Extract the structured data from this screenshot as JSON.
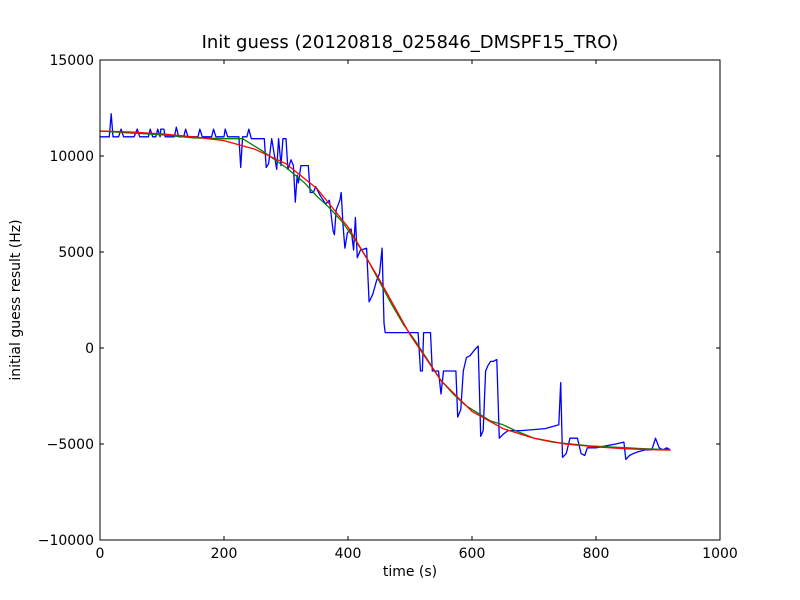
{
  "chart_data": {
    "type": "line",
    "title": "Init guess (20120818_025846_DMSPF15_TRO)",
    "xlabel": "time (s)",
    "ylabel": "initial guess result (Hz)",
    "xlim": [
      0,
      1000
    ],
    "ylim": [
      -10000,
      15000
    ],
    "xticks": [
      0,
      200,
      400,
      600,
      800,
      1000
    ],
    "yticks": [
      -10000,
      -5000,
      0,
      5000,
      10000,
      15000
    ],
    "grid": false,
    "series": [
      {
        "color": "#0000ff",
        "points": [
          [
            0,
            11000
          ],
          [
            15,
            11000
          ],
          [
            18,
            12200
          ],
          [
            21,
            11000
          ],
          [
            30,
            11000
          ],
          [
            34,
            11400
          ],
          [
            38,
            11000
          ],
          [
            55,
            11000
          ],
          [
            60,
            11400
          ],
          [
            64,
            11000
          ],
          [
            78,
            11000
          ],
          [
            81,
            11400
          ],
          [
            85,
            11000
          ],
          [
            90,
            11000
          ],
          [
            93,
            11400
          ],
          [
            97,
            11000
          ],
          [
            98,
            11400
          ],
          [
            103,
            11400
          ],
          [
            105,
            11000
          ],
          [
            120,
            11000
          ],
          [
            123,
            11500
          ],
          [
            127,
            11000
          ],
          [
            135,
            11000
          ],
          [
            138,
            11400
          ],
          [
            142,
            11000
          ],
          [
            158,
            11000
          ],
          [
            161,
            11400
          ],
          [
            165,
            11000
          ],
          [
            180,
            11000
          ],
          [
            183,
            11400
          ],
          [
            187,
            11000
          ],
          [
            200,
            11000
          ],
          [
            202,
            11400
          ],
          [
            206,
            11000
          ],
          [
            224,
            11000
          ],
          [
            227,
            9400
          ],
          [
            230,
            11000
          ],
          [
            237,
            11000
          ],
          [
            240,
            11400
          ],
          [
            244,
            10900
          ],
          [
            265,
            10900
          ],
          [
            268,
            9400
          ],
          [
            272,
            9600
          ],
          [
            277,
            10900
          ],
          [
            285,
            9300
          ],
          [
            288,
            10900
          ],
          [
            292,
            9500
          ],
          [
            295,
            10900
          ],
          [
            300,
            10900
          ],
          [
            303,
            9300
          ],
          [
            308,
            9800
          ],
          [
            312,
            9500
          ],
          [
            315,
            7600
          ],
          [
            318,
            9000
          ],
          [
            320,
            8600
          ],
          [
            324,
            9500
          ],
          [
            336,
            9500
          ],
          [
            339,
            8100
          ],
          [
            344,
            8100
          ],
          [
            348,
            8400
          ],
          [
            354,
            8000
          ],
          [
            358,
            7800
          ],
          [
            364,
            7500
          ],
          [
            370,
            7700
          ],
          [
            376,
            6100
          ],
          [
            378,
            5900
          ],
          [
            381,
            7200
          ],
          [
            387,
            7700
          ],
          [
            389,
            8100
          ],
          [
            392,
            6400
          ],
          [
            395,
            5200
          ],
          [
            399,
            6000
          ],
          [
            405,
            6200
          ],
          [
            409,
            5100
          ],
          [
            412,
            6800
          ],
          [
            415,
            4700
          ],
          [
            420,
            5100
          ],
          [
            430,
            5200
          ],
          [
            434,
            2400
          ],
          [
            440,
            2800
          ],
          [
            446,
            3500
          ],
          [
            451,
            3900
          ],
          [
            455,
            5200
          ],
          [
            458,
            1300
          ],
          [
            460,
            800
          ],
          [
            480,
            800
          ],
          [
            498,
            800
          ],
          [
            513,
            800
          ],
          [
            517,
            -1200
          ],
          [
            520,
            -1200
          ],
          [
            522,
            800
          ],
          [
            533,
            800
          ],
          [
            536,
            -1200
          ],
          [
            542,
            -1200
          ],
          [
            546,
            -1200
          ],
          [
            550,
            -2400
          ],
          [
            554,
            -1200
          ],
          [
            574,
            -1200
          ],
          [
            577,
            -3600
          ],
          [
            582,
            -3200
          ],
          [
            586,
            -1200
          ],
          [
            591,
            -500
          ],
          [
            597,
            -400
          ],
          [
            604,
            -100
          ],
          [
            610,
            100
          ],
          [
            614,
            -4600
          ],
          [
            618,
            -4300
          ],
          [
            622,
            -1200
          ],
          [
            626,
            -900
          ],
          [
            630,
            -700
          ],
          [
            634,
            -700
          ],
          [
            640,
            -600
          ],
          [
            644,
            -4700
          ],
          [
            650,
            -4500
          ],
          [
            658,
            -4300
          ],
          [
            680,
            -4300
          ],
          [
            718,
            -4200
          ],
          [
            740,
            -4000
          ],
          [
            743,
            -1800
          ],
          [
            746,
            -5700
          ],
          [
            752,
            -5500
          ],
          [
            758,
            -4700
          ],
          [
            770,
            -4700
          ],
          [
            776,
            -5500
          ],
          [
            782,
            -5600
          ],
          [
            786,
            -5200
          ],
          [
            800,
            -5200
          ],
          [
            832,
            -5000
          ],
          [
            845,
            -4900
          ],
          [
            848,
            -5800
          ],
          [
            854,
            -5600
          ],
          [
            860,
            -5500
          ],
          [
            868,
            -5400
          ],
          [
            880,
            -5300
          ],
          [
            890,
            -5300
          ],
          [
            896,
            -4700
          ],
          [
            902,
            -5200
          ],
          [
            908,
            -5300
          ],
          [
            914,
            -5200
          ],
          [
            920,
            -5300
          ]
        ]
      },
      {
        "color": "#008000",
        "points": [
          [
            0,
            11300
          ],
          [
            50,
            11200
          ],
          [
            100,
            11100
          ],
          [
            150,
            10950
          ],
          [
            200,
            10900
          ],
          [
            230,
            10900
          ],
          [
            260,
            10300
          ],
          [
            300,
            9400
          ],
          [
            330,
            8600
          ],
          [
            350,
            7900
          ],
          [
            370,
            7300
          ],
          [
            390,
            6600
          ],
          [
            410,
            5700
          ],
          [
            430,
            4700
          ],
          [
            450,
            3500
          ],
          [
            470,
            2300
          ],
          [
            490,
            1200
          ],
          [
            510,
            300
          ],
          [
            530,
            -700
          ],
          [
            550,
            -1700
          ],
          [
            570,
            -2400
          ],
          [
            590,
            -3000
          ],
          [
            610,
            -3400
          ],
          [
            630,
            -3800
          ],
          [
            650,
            -4000
          ],
          [
            670,
            -4300
          ],
          [
            700,
            -4700
          ],
          [
            730,
            -4900
          ],
          [
            760,
            -5000
          ],
          [
            790,
            -5100
          ],
          [
            820,
            -5150
          ],
          [
            850,
            -5200
          ],
          [
            880,
            -5250
          ],
          [
            920,
            -5300
          ]
        ]
      },
      {
        "color": "#ff0000",
        "points": [
          [
            0,
            11300
          ],
          [
            50,
            11250
          ],
          [
            100,
            11150
          ],
          [
            150,
            11000
          ],
          [
            200,
            10800
          ],
          [
            250,
            10350
          ],
          [
            300,
            9600
          ],
          [
            350,
            8300
          ],
          [
            400,
            6300
          ],
          [
            450,
            3600
          ],
          [
            500,
            700
          ],
          [
            550,
            -1700
          ],
          [
            600,
            -3300
          ],
          [
            650,
            -4200
          ],
          [
            700,
            -4700
          ],
          [
            750,
            -5000
          ],
          [
            800,
            -5150
          ],
          [
            850,
            -5250
          ],
          [
            900,
            -5300
          ],
          [
            920,
            -5320
          ]
        ]
      }
    ]
  }
}
